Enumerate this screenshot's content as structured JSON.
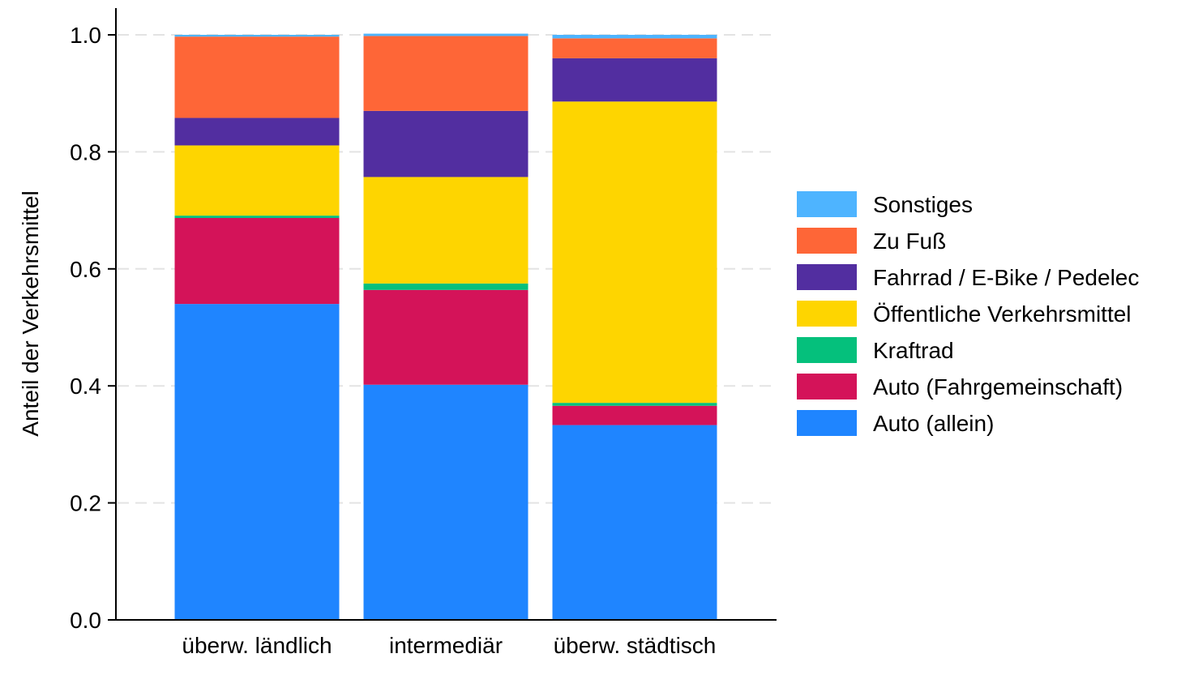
{
  "chart_data": {
    "type": "bar",
    "stacked": true,
    "title": "",
    "xlabel": "",
    "ylabel": "Anteil der Verkehrsmittel",
    "ylim": [
      0,
      1.0
    ],
    "yticks": [
      0.0,
      0.2,
      0.4,
      0.6,
      0.8,
      1.0
    ],
    "ytick_labels": [
      "0.0",
      "0.2",
      "0.4",
      "0.6",
      "0.8",
      "1.0"
    ],
    "grid": "horizontal-dashed",
    "legend_position": "right",
    "categories": [
      "überw. ländlich",
      "intermediär",
      "überw. städtisch"
    ],
    "series": [
      {
        "name": "Auto (allein)",
        "color": "#1f85ff",
        "values": [
          0.54,
          0.402,
          0.333
        ]
      },
      {
        "name": "Auto (Fahrgemeinschaft)",
        "color": "#d41359",
        "values": [
          0.147,
          0.162,
          0.033
        ]
      },
      {
        "name": "Kraftrad",
        "color": "#05c07c",
        "values": [
          0.004,
          0.011,
          0.005
        ]
      },
      {
        "name": "Öffentliche Verkehrsmittel",
        "color": "#fed500",
        "values": [
          0.12,
          0.182,
          0.515
        ]
      },
      {
        "name": "Fahrrad / E-Bike / Pedelec",
        "color": "#522ea0",
        "values": [
          0.047,
          0.113,
          0.074
        ]
      },
      {
        "name": "Zu Fuß",
        "color": "#fe6637",
        "values": [
          0.139,
          0.128,
          0.034
        ]
      },
      {
        "name": "Sonstiges",
        "color": "#4eb4ff",
        "values": [
          0.003,
          0.004,
          0.006
        ]
      }
    ]
  }
}
